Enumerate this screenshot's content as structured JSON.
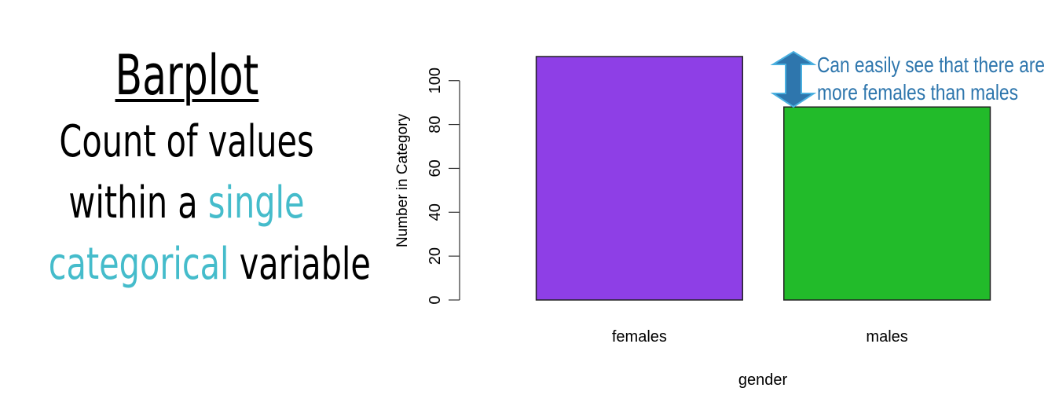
{
  "slide": {
    "title": "Barplot",
    "desc_line1": "Count of values",
    "desc_line2_a": "within a ",
    "desc_line2_b": "single",
    "desc_line3_a": "categorical",
    "desc_line3_b": " variable",
    "highlight_color": "#45bccb"
  },
  "annotation": {
    "line1": "Can easily see that there are",
    "line2": "more females than males",
    "color": "#2e76ad",
    "icon": "double-arrow-icon"
  },
  "chart_data": {
    "type": "bar",
    "categories": [
      "females",
      "males"
    ],
    "values": [
      111,
      88
    ],
    "colors": [
      "#8e3fe6",
      "#22bb2a"
    ],
    "xlabel": "gender",
    "ylabel": "Number in Category",
    "yticks": [
      0,
      20,
      40,
      60,
      80,
      100
    ],
    "ylim": [
      0,
      111
    ],
    "grid": false
  }
}
